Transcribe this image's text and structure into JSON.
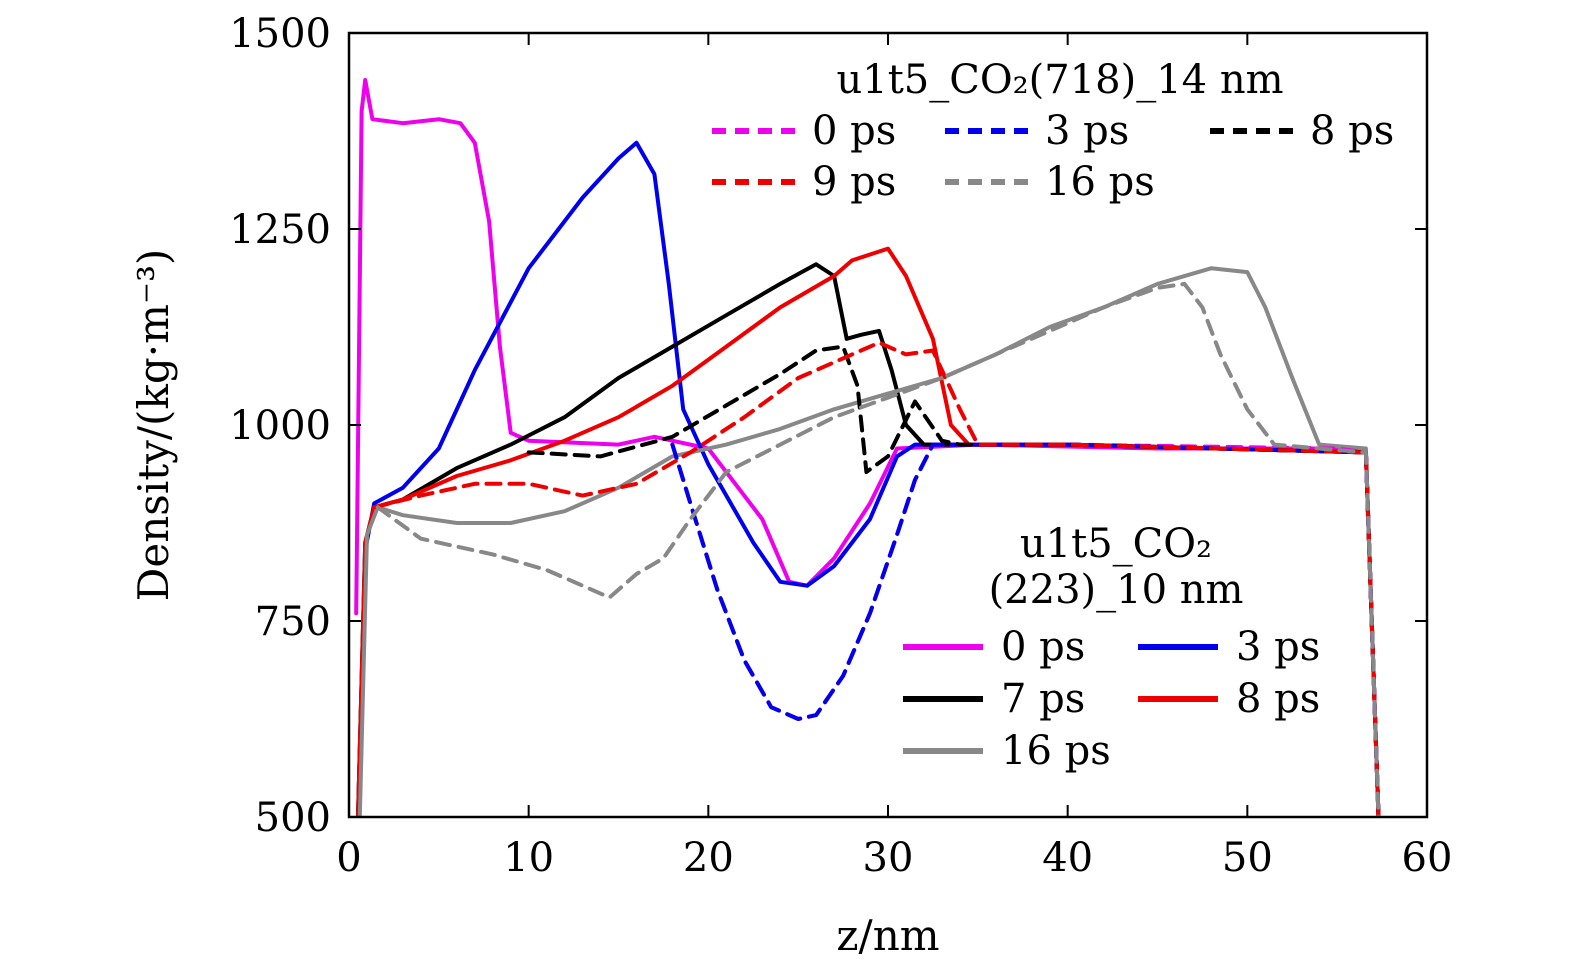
{
  "chart_data": {
    "type": "line",
    "xlabel": "z/nm",
    "ylabel": "Density/(kg·m⁻³)",
    "xlim": [
      0,
      60
    ],
    "ylim": [
      500,
      1500
    ],
    "xticks": [
      "0",
      "10",
      "20",
      "30",
      "40",
      "50",
      "60"
    ],
    "yticks": [
      "500",
      "750",
      "1000",
      "1250",
      "1500"
    ],
    "grid": false,
    "legends": [
      {
        "title": "u1t5_CO₂(718)_14 nm",
        "placement": "top-right",
        "line_style": "dashed",
        "entries": [
          "0 ps",
          "3 ps",
          "8 ps",
          "9 ps",
          "16 ps"
        ]
      },
      {
        "title_lines": [
          "u1t5_CO₂",
          "(223)_10 nm"
        ],
        "placement": "bottom-right",
        "line_style": "solid",
        "entries": [
          "0 ps",
          "3 ps",
          "7 ps",
          "8 ps",
          "16 ps"
        ]
      }
    ],
    "series": [
      {
        "name": "0 ps",
        "group": "u1t5_CO₂(223)_10 nm",
        "style": "solid",
        "color": "#ee00ee",
        "points": [
          [
            0.4,
            760
          ],
          [
            0.7,
            1400
          ],
          [
            0.9,
            1440
          ],
          [
            1.3,
            1390
          ],
          [
            3,
            1385
          ],
          [
            5,
            1390
          ],
          [
            6.2,
            1385
          ],
          [
            7,
            1360
          ],
          [
            7.8,
            1260
          ],
          [
            8.4,
            1100
          ],
          [
            9,
            990
          ],
          [
            10,
            980
          ],
          [
            15,
            975
          ],
          [
            17,
            985
          ],
          [
            20,
            970
          ],
          [
            23,
            880
          ],
          [
            24.5,
            800
          ],
          [
            25.5,
            795
          ],
          [
            27,
            830
          ],
          [
            29,
            900
          ],
          [
            30.5,
            970
          ],
          [
            35,
            975
          ],
          [
            45,
            970
          ],
          [
            55,
            970
          ],
          [
            56.6,
            965
          ],
          [
            57.3,
            500
          ]
        ]
      },
      {
        "name": "3 ps",
        "group": "u1t5_CO₂(223)_10 nm",
        "style": "solid",
        "color": "#0000ee",
        "points": [
          [
            0.5,
            500
          ],
          [
            0.9,
            840
          ],
          [
            1.4,
            900
          ],
          [
            3,
            920
          ],
          [
            5,
            970
          ],
          [
            7,
            1070
          ],
          [
            10,
            1200
          ],
          [
            13,
            1290
          ],
          [
            15,
            1340
          ],
          [
            16,
            1360
          ],
          [
            17,
            1320
          ],
          [
            17.8,
            1180
          ],
          [
            18.6,
            1020
          ],
          [
            20,
            950
          ],
          [
            22.5,
            850
          ],
          [
            24,
            800
          ],
          [
            25.5,
            795
          ],
          [
            27,
            820
          ],
          [
            29,
            880
          ],
          [
            30.5,
            960
          ],
          [
            31.5,
            975
          ],
          [
            40,
            975
          ],
          [
            56.6,
            965
          ],
          [
            57.3,
            500
          ]
        ]
      },
      {
        "name": "7 ps",
        "group": "u1t5_CO₂(223)_10 nm",
        "style": "solid",
        "color": "#000000",
        "points": [
          [
            0.5,
            500
          ],
          [
            0.9,
            850
          ],
          [
            1.4,
            895
          ],
          [
            3,
            905
          ],
          [
            6,
            945
          ],
          [
            9,
            975
          ],
          [
            12,
            1010
          ],
          [
            15,
            1060
          ],
          [
            18,
            1100
          ],
          [
            21,
            1140
          ],
          [
            24,
            1180
          ],
          [
            26,
            1205
          ],
          [
            27,
            1190
          ],
          [
            27.7,
            1110
          ],
          [
            28.5,
            1115
          ],
          [
            29.5,
            1120
          ],
          [
            30.2,
            1070
          ],
          [
            31,
            1000
          ],
          [
            32,
            975
          ],
          [
            40,
            975
          ],
          [
            56.6,
            965
          ],
          [
            57.3,
            500
          ]
        ]
      },
      {
        "name": "8 ps",
        "group": "u1t5_CO₂(223)_10 nm",
        "style": "solid",
        "color": "#ee0000",
        "points": [
          [
            0.5,
            500
          ],
          [
            0.9,
            850
          ],
          [
            1.4,
            895
          ],
          [
            3,
            905
          ],
          [
            6,
            935
          ],
          [
            9,
            955
          ],
          [
            12,
            980
          ],
          [
            15,
            1010
          ],
          [
            18,
            1050
          ],
          [
            21,
            1100
          ],
          [
            24,
            1150
          ],
          [
            27,
            1190
          ],
          [
            28,
            1210
          ],
          [
            30,
            1225
          ],
          [
            31,
            1190
          ],
          [
            32.5,
            1110
          ],
          [
            33.5,
            1000
          ],
          [
            34.5,
            975
          ],
          [
            40,
            975
          ],
          [
            56.6,
            965
          ],
          [
            57.3,
            500
          ]
        ]
      },
      {
        "name": "16 ps",
        "group": "u1t5_CO₂(223)_10 nm",
        "style": "solid",
        "color": "#888888",
        "points": [
          [
            0.6,
            500
          ],
          [
            1.0,
            860
          ],
          [
            1.6,
            895
          ],
          [
            3,
            885
          ],
          [
            6,
            875
          ],
          [
            9,
            875
          ],
          [
            12,
            890
          ],
          [
            15,
            920
          ],
          [
            18,
            960
          ],
          [
            21,
            975
          ],
          [
            24,
            995
          ],
          [
            27,
            1020
          ],
          [
            30,
            1040
          ],
          [
            33,
            1060
          ],
          [
            36,
            1090
          ],
          [
            39,
            1125
          ],
          [
            42,
            1150
          ],
          [
            45,
            1180
          ],
          [
            48,
            1200
          ],
          [
            50,
            1195
          ],
          [
            51,
            1150
          ],
          [
            52.5,
            1060
          ],
          [
            54,
            975
          ],
          [
            56.6,
            970
          ],
          [
            57.3,
            500
          ]
        ]
      },
      {
        "name": "0 ps",
        "group": "u1t5_CO₂(718)_14 nm",
        "style": "dashed",
        "color": "#ee00ee",
        "points": [
          [
            18,
            975
          ],
          [
            19,
            900
          ],
          [
            20.5,
            790
          ],
          [
            22,
            700
          ],
          [
            23.5,
            640
          ],
          [
            25,
            625
          ],
          [
            26,
            630
          ],
          [
            27.5,
            680
          ],
          [
            29,
            760
          ],
          [
            30.5,
            860
          ],
          [
            31.5,
            930
          ],
          [
            32.5,
            975
          ],
          [
            40,
            975
          ],
          [
            55,
            970
          ],
          [
            56.6,
            965
          ],
          [
            57.3,
            500
          ]
        ]
      },
      {
        "name": "3 ps",
        "group": "u1t5_CO₂(718)_14 nm",
        "style": "dashed",
        "color": "#0000ee",
        "points": [
          [
            18,
            975
          ],
          [
            19,
            900
          ],
          [
            20.5,
            790
          ],
          [
            22,
            700
          ],
          [
            23.5,
            640
          ],
          [
            25,
            625
          ],
          [
            26,
            630
          ],
          [
            27.5,
            680
          ],
          [
            29,
            760
          ],
          [
            30.5,
            860
          ],
          [
            31.5,
            930
          ],
          [
            32.5,
            975
          ],
          [
            40,
            975
          ],
          [
            56.6,
            965
          ],
          [
            57.3,
            500
          ]
        ]
      },
      {
        "name": "8 ps",
        "group": "u1t5_CO₂(718)_14 nm",
        "style": "dashed",
        "color": "#000000",
        "points": [
          [
            10,
            965
          ],
          [
            14,
            960
          ],
          [
            18,
            985
          ],
          [
            21,
            1025
          ],
          [
            24,
            1065
          ],
          [
            26,
            1095
          ],
          [
            27.5,
            1100
          ],
          [
            28.3,
            1050
          ],
          [
            28.8,
            940
          ],
          [
            30,
            960
          ],
          [
            31.5,
            1030
          ],
          [
            33,
            980
          ],
          [
            34,
            975
          ],
          [
            40,
            975
          ],
          [
            56.6,
            965
          ],
          [
            57.3,
            500
          ]
        ]
      },
      {
        "name": "9 ps",
        "group": "u1t5_CO₂(718)_14 nm",
        "style": "dashed",
        "color": "#ee0000",
        "points": [
          [
            1.4,
            895
          ],
          [
            4,
            910
          ],
          [
            7,
            925
          ],
          [
            10,
            925
          ],
          [
            13,
            910
          ],
          [
            16,
            925
          ],
          [
            19,
            965
          ],
          [
            22,
            1010
          ],
          [
            25,
            1060
          ],
          [
            28,
            1090
          ],
          [
            29.5,
            1105
          ],
          [
            31,
            1090
          ],
          [
            32.5,
            1095
          ],
          [
            34,
            1020
          ],
          [
            35,
            975
          ],
          [
            40,
            975
          ],
          [
            56.6,
            965
          ],
          [
            57.3,
            500
          ]
        ]
      },
      {
        "name": "16 ps",
        "group": "u1t5_CO₂(718)_14 nm",
        "style": "dashed",
        "color": "#888888",
        "points": [
          [
            1.6,
            895
          ],
          [
            4,
            855
          ],
          [
            8,
            835
          ],
          [
            11,
            815
          ],
          [
            13,
            795
          ],
          [
            14.5,
            780
          ],
          [
            16,
            810
          ],
          [
            17.5,
            830
          ],
          [
            19,
            880
          ],
          [
            21,
            940
          ],
          [
            24,
            975
          ],
          [
            27,
            1010
          ],
          [
            30,
            1035
          ],
          [
            33,
            1060
          ],
          [
            36,
            1090
          ],
          [
            39,
            1120
          ],
          [
            42,
            1150
          ],
          [
            45,
            1175
          ],
          [
            46.5,
            1180
          ],
          [
            47.5,
            1150
          ],
          [
            48.5,
            1090
          ],
          [
            50,
            1020
          ],
          [
            51.5,
            975
          ],
          [
            54,
            970
          ],
          [
            56.6,
            965
          ],
          [
            57.3,
            500
          ]
        ]
      }
    ]
  }
}
